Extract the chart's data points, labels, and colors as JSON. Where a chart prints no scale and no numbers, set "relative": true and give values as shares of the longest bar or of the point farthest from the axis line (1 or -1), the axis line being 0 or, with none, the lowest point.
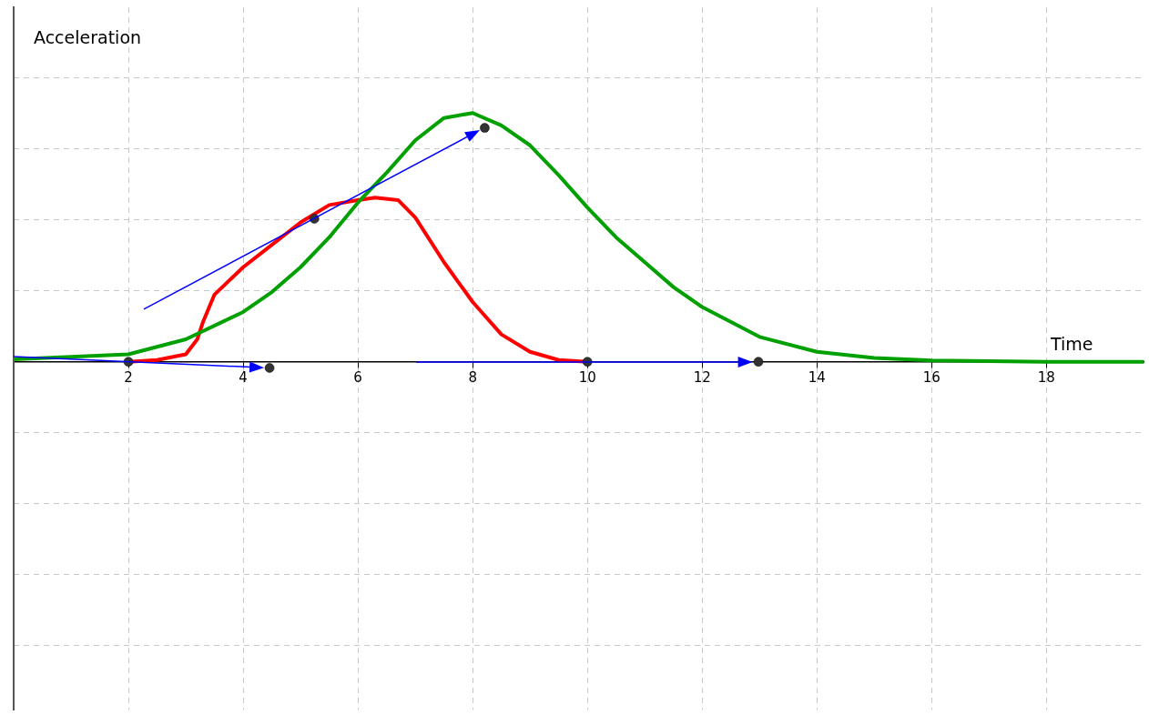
{
  "chart_data": {
    "type": "line",
    "xlabel": "Time",
    "ylabel": "Acceleration",
    "relative": true,
    "grid": true,
    "legend": false,
    "marker": "none",
    "line_style": "solid",
    "xlim": [
      0,
      19.7
    ],
    "xticks": [
      2,
      4,
      6,
      8,
      10,
      12,
      14,
      16,
      18
    ],
    "series": [
      {
        "type": "line",
        "color": "#00a000",
        "x": [
          0,
          2,
          3,
          4,
          4.5,
          5,
          5.5,
          6,
          6.5,
          7,
          7.5,
          8,
          8.5,
          9,
          9.5,
          10,
          10.5,
          11,
          11.5,
          12,
          13,
          14,
          15,
          16,
          18,
          19.7
        ],
        "values": [
          0.01,
          0.03,
          0.09,
          0.2,
          0.28,
          0.38,
          0.5,
          0.64,
          0.76,
          0.89,
          0.98,
          1,
          0.95,
          0.87,
          0.75,
          0.62,
          0.5,
          0.4,
          0.3,
          0.22,
          0.1,
          0.04,
          0.015,
          0.005,
          0,
          0
        ]
      },
      {
        "type": "line",
        "color": "#ff0000",
        "x": [
          2,
          2.5,
          3,
          3.2,
          3.3,
          3.5,
          4,
          4.5,
          5,
          5.5,
          6,
          6.3,
          6.7,
          7,
          7.5,
          8,
          8.5,
          9,
          9.5,
          10
        ],
        "values": [
          0,
          0.007,
          0.03,
          0.09,
          0.16,
          0.27,
          0.38,
          0.47,
          0.56,
          0.63,
          0.65,
          0.66,
          0.65,
          0.58,
          0.4,
          0.24,
          0.11,
          0.04,
          0.007,
          0
        ]
      },
      {
        "type": "scatter",
        "color": "#333333",
        "marker": "circle",
        "x": [
          2,
          4.46,
          5.24,
          8.21,
          10,
          12.98
        ],
        "values": [
          0,
          -0.025,
          0.575,
          0.94,
          0,
          0
        ]
      }
    ]
  }
}
